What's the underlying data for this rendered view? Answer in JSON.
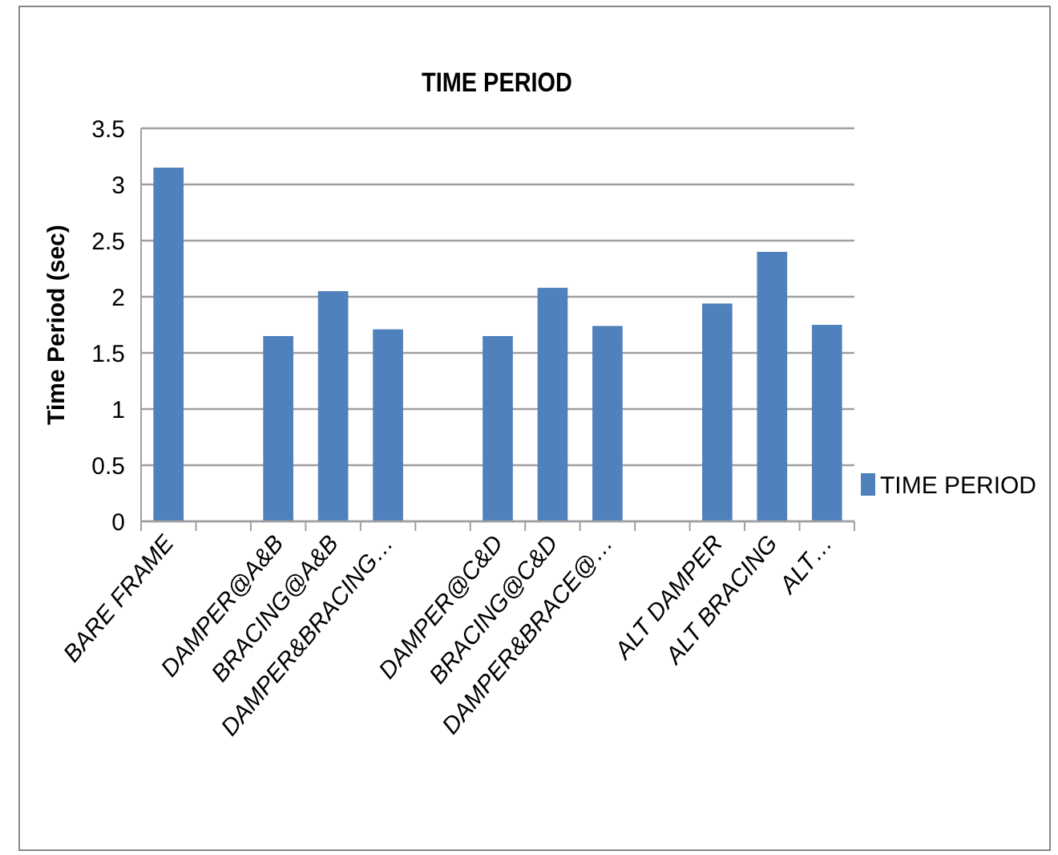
{
  "chart_data": {
    "type": "bar",
    "title": "TIME PERIOD",
    "ylabel": "Time Period (sec)",
    "categories": [
      "BARE FRAME",
      null,
      "DAMPER@A&B",
      "BRACING@A&B",
      "DAMPER&BRACING…",
      null,
      "DAMPER@C&D",
      "BRACING@C&D",
      "DAMPER&BRACE@…",
      null,
      "ALT DAMPER",
      "ALT BRACING",
      "ALT…"
    ],
    "series": [
      {
        "name": "TIME PERIOD",
        "color": "#4f81bd",
        "values": [
          3.15,
          null,
          1.65,
          2.05,
          1.71,
          null,
          1.65,
          2.08,
          1.74,
          null,
          1.94,
          2.4,
          1.75
        ]
      }
    ],
    "ylim": [
      0,
      3.5
    ],
    "yticks": [
      0,
      0.5,
      1,
      1.5,
      2,
      2.5,
      3,
      3.5
    ],
    "grid": "y",
    "legend": "right"
  }
}
